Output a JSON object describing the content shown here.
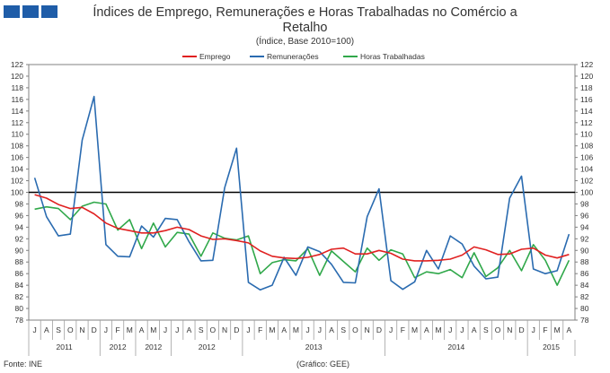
{
  "header": {
    "title_line1": "Índices de Emprego, Remunerações e Horas Trabalhadas no Comércio a",
    "title_line2": "Retalho",
    "subtitle": "(Índice, Base 2010=100)"
  },
  "footer": {
    "source": "Fonte: INE",
    "credit": "(Gráfico: GEE)"
  },
  "colors": {
    "logo": "#1f5da8",
    "emprego": "#e02020",
    "remuneracoes": "#2a6bb0",
    "horas": "#30a84a",
    "reference_line": "#000000"
  },
  "chart_data": {
    "type": "line",
    "title": "Índices de Emprego, Remunerações e Horas Trabalhadas no Comércio a Retalho",
    "subtitle": "(Índice, Base 2010=100)",
    "legend_position": "top-center",
    "ylim": [
      78,
      122
    ],
    "yticks": [
      78,
      80,
      82,
      84,
      86,
      88,
      90,
      92,
      94,
      96,
      98,
      100,
      102,
      104,
      106,
      108,
      110,
      112,
      114,
      116,
      118,
      120,
      122
    ],
    "y_axes": "left-and-right",
    "grid": false,
    "reference_line": 100,
    "categories": [
      "J",
      "A",
      "S",
      "O",
      "N",
      "D",
      "J",
      "F",
      "M",
      "A",
      "M",
      "J",
      "J",
      "A",
      "S",
      "O",
      "N",
      "D",
      "J",
      "F",
      "M",
      "A",
      "M",
      "J",
      "J",
      "A",
      "S",
      "O",
      "N",
      "D",
      "J",
      "F",
      "M",
      "A",
      "M",
      "J",
      "J",
      "A",
      "S",
      "O",
      "N",
      "D",
      "J",
      "F",
      "M",
      "A"
    ],
    "year_groups": [
      {
        "label": "2011",
        "start": 0,
        "count": 6
      },
      {
        "label": "2012",
        "start": 6,
        "count": 3
      },
      {
        "label": "2012",
        "start": 9,
        "count": 3
      },
      {
        "label": "2012",
        "start": 12,
        "count": 6
      },
      {
        "label": "2013",
        "start": 18,
        "count": 12
      },
      {
        "label": "2014",
        "start": 30,
        "count": 12
      },
      {
        "label": "2015",
        "start": 42,
        "count": 4
      }
    ],
    "series": [
      {
        "name": "Emprego",
        "color": "#e02020",
        "values": [
          99.6,
          99.0,
          97.9,
          97.2,
          97.4,
          96.3,
          94.7,
          93.8,
          93.4,
          93.0,
          93.0,
          93.4,
          94.0,
          93.6,
          92.5,
          91.9,
          92.0,
          91.7,
          91.3,
          89.9,
          89.0,
          88.7,
          88.6,
          88.8,
          89.3,
          90.2,
          90.4,
          89.4,
          89.4,
          90.0,
          89.5,
          88.5,
          88.2,
          88.2,
          88.3,
          88.5,
          89.2,
          90.6,
          90.1,
          89.3,
          89.4,
          90.2,
          90.4,
          89.2,
          88.7,
          89.3
        ]
      },
      {
        "name": "Remunerações",
        "color": "#2a6bb0",
        "values": [
          102.5,
          95.8,
          92.5,
          92.8,
          109.0,
          116.5,
          91.0,
          89.0,
          88.9,
          94.2,
          92.3,
          95.5,
          95.3,
          91.5,
          88.2,
          88.3,
          100.8,
          107.6,
          84.5,
          83.2,
          84.0,
          88.8,
          85.7,
          90.6,
          89.8,
          87.6,
          84.5,
          84.4,
          95.8,
          100.6,
          84.8,
          83.3,
          84.6,
          90.0,
          86.8,
          92.5,
          91.1,
          87.3,
          85.1,
          85.4,
          99.0,
          102.8,
          86.8,
          86.0,
          86.5,
          92.8
        ]
      },
      {
        "name": "Horas Trabalhadas",
        "color": "#30a84a",
        "values": [
          97.1,
          97.5,
          97.2,
          95.3,
          97.6,
          98.3,
          98.0,
          93.5,
          95.3,
          90.3,
          94.7,
          90.6,
          93.1,
          92.8,
          89.0,
          93.0,
          92.1,
          91.8,
          92.5,
          86.0,
          87.9,
          88.4,
          88.2,
          90.3,
          85.7,
          89.9,
          88.1,
          86.3,
          90.4,
          88.3,
          90.1,
          89.4,
          85.3,
          86.3,
          86.0,
          86.7,
          85.3,
          89.6,
          85.5,
          87.0,
          90.0,
          86.5,
          91.0,
          88.3,
          84.0,
          88.3
        ]
      }
    ]
  }
}
